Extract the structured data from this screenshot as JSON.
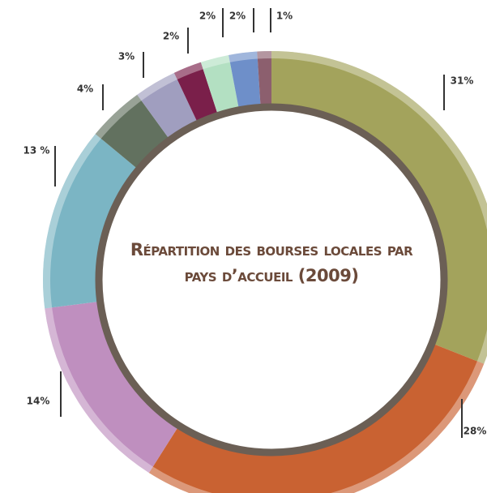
{
  "chart_data": {
    "type": "donut",
    "title": "Répartition des bourses locales par pays d’accueil (2009)",
    "values": [
      31,
      28,
      14,
      13,
      4,
      3,
      2,
      2,
      2,
      1
    ],
    "value_labels": [
      "31%",
      "28%",
      "14%",
      "13 %",
      "4%",
      "3%",
      "2%",
      "2%",
      "2%",
      "1%"
    ],
    "colors": [
      "#a3a35c",
      "#c96232",
      "#bf8fbf",
      "#7bb5c4",
      "#62715f",
      "#a09ebf",
      "#7a1f4a",
      "#b3e0c2",
      "#6e8fc9",
      "#8c5f6e"
    ]
  }
}
